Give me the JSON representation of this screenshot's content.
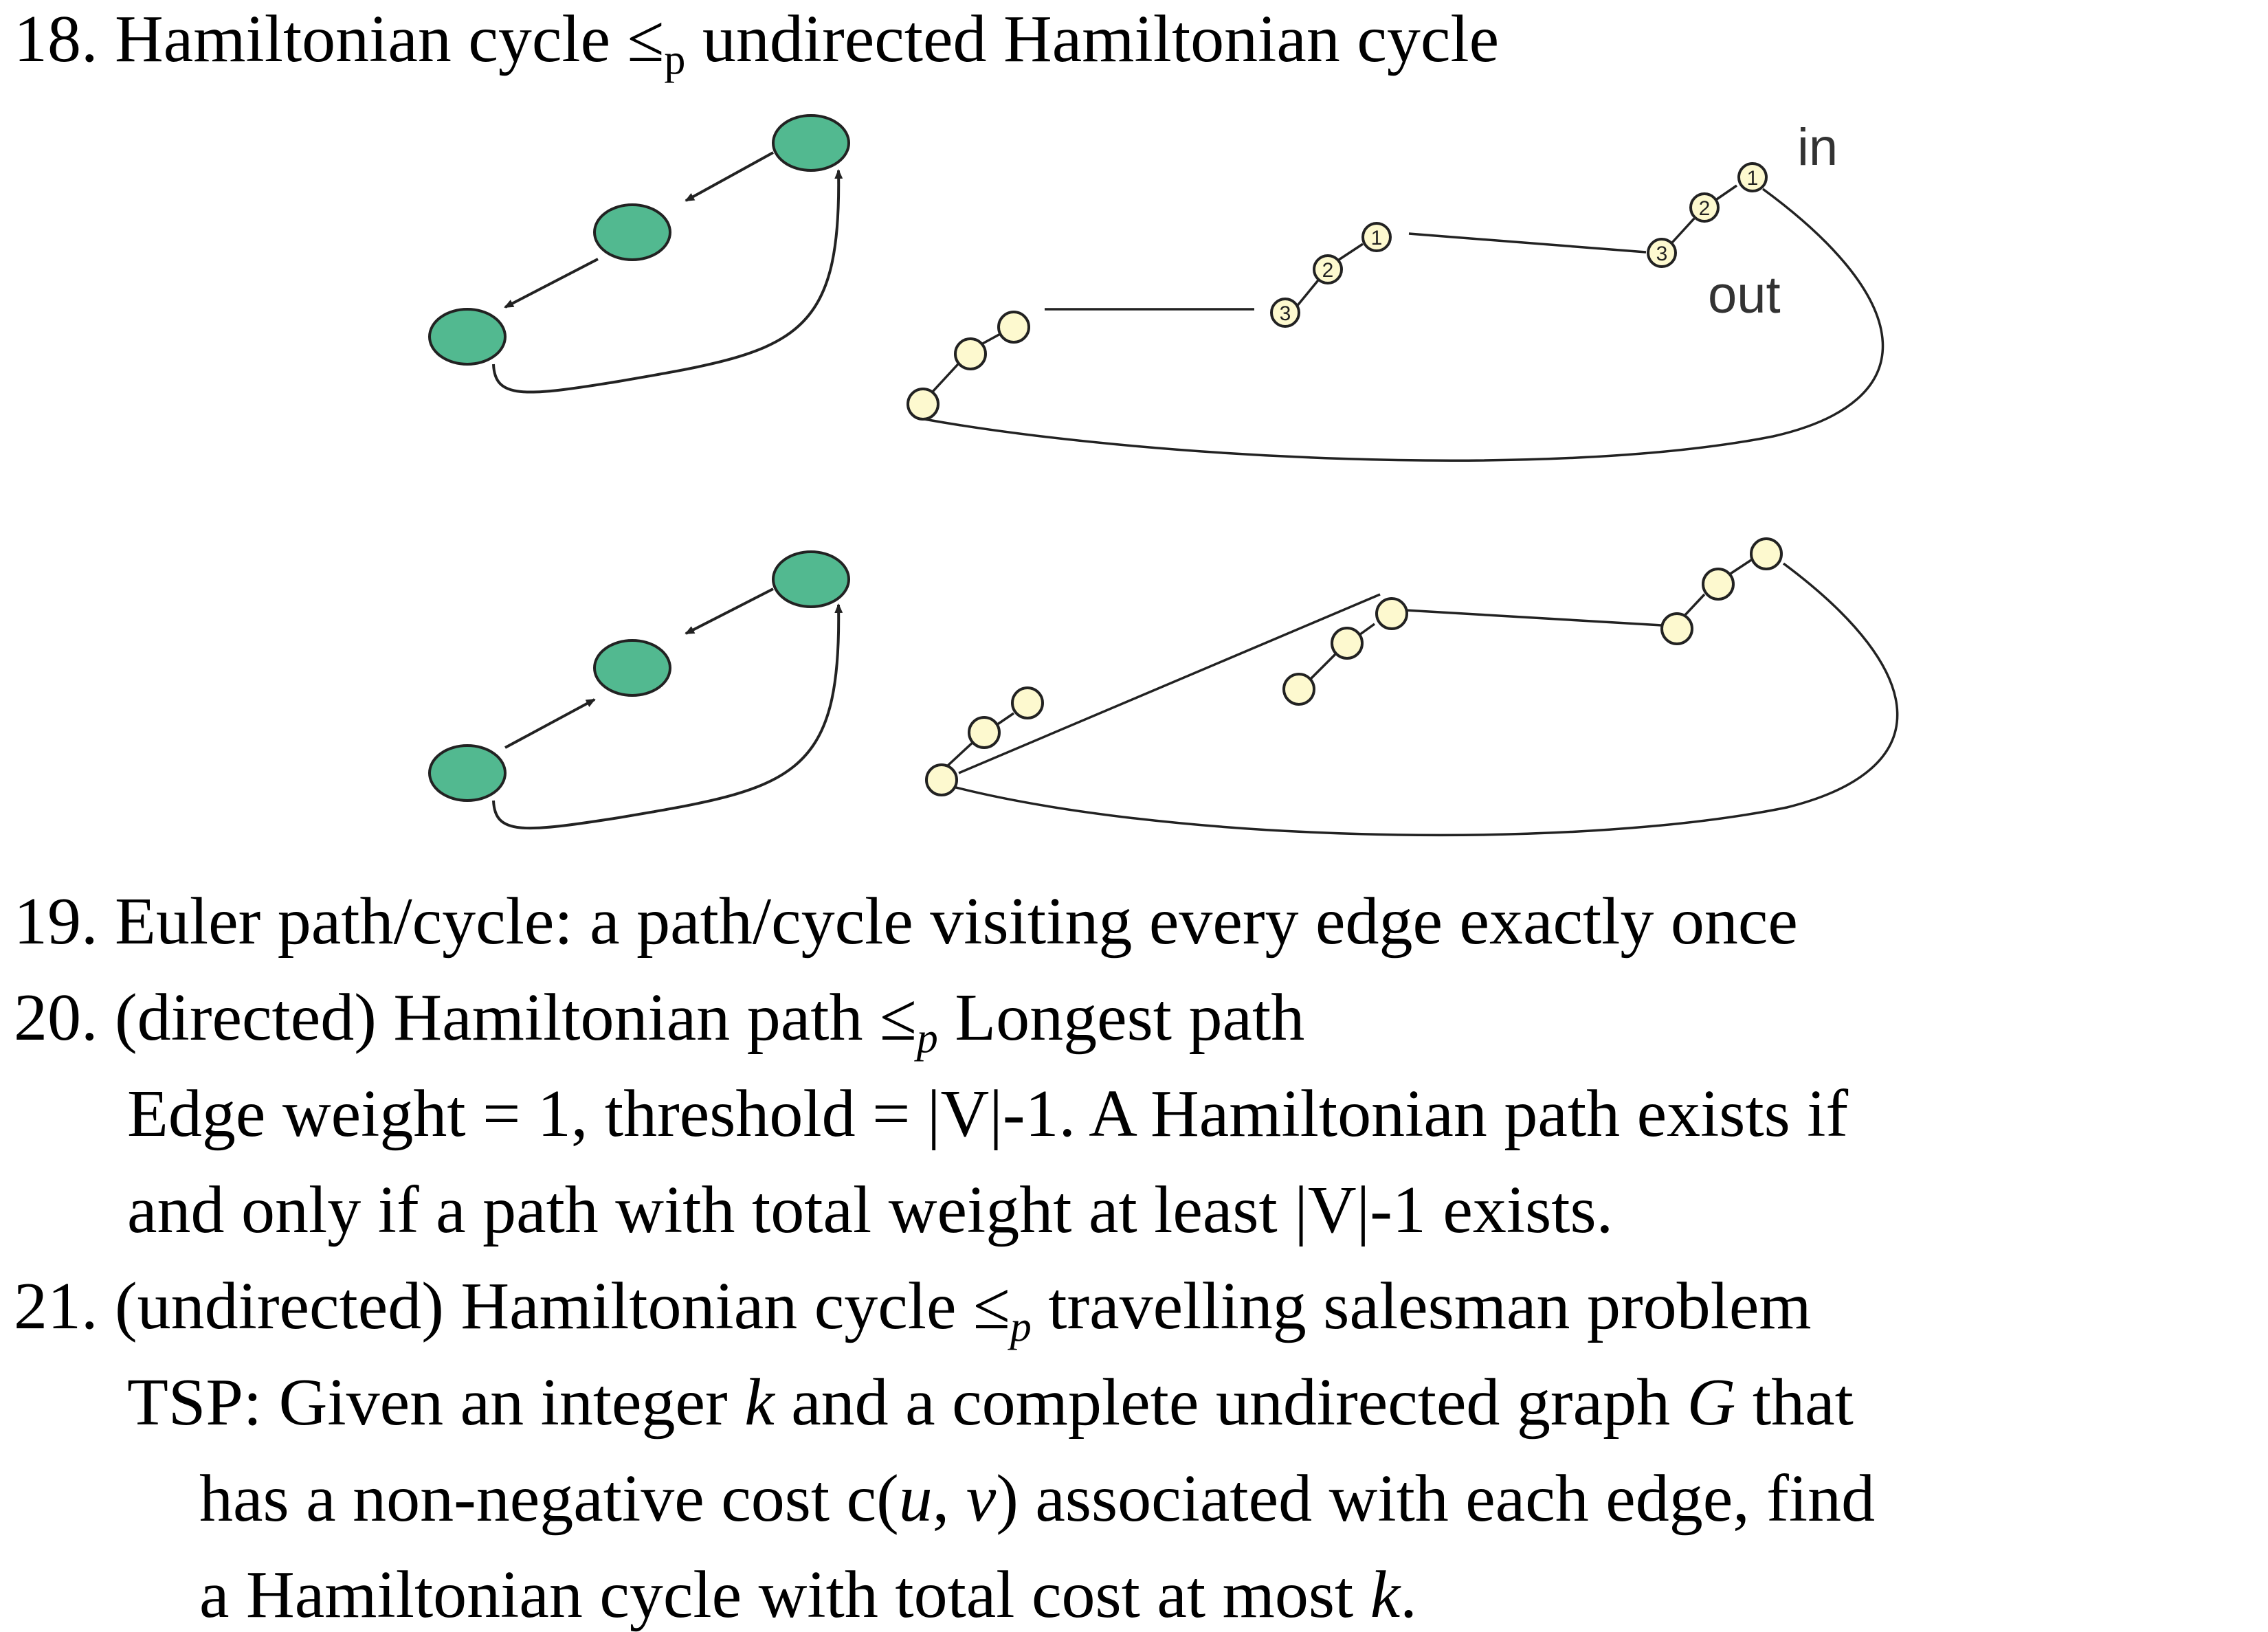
{
  "items": [
    {
      "num": "18.",
      "pre": "Hamiltonian cycle ≤",
      "sub": "p",
      "post": " undirected Hamiltonian cycle"
    },
    {
      "num": "19.",
      "text": "Euler path/cycle: a path/cycle visiting every edge exactly once"
    },
    {
      "num": "20.",
      "pre": "(directed) Hamiltonian path ≤",
      "sub": "p",
      "post": " Longest path",
      "lines": [
        "Edge weight = 1, threshold = |V|-1. A Hamiltonian path exists if",
        "and only if a path with total weight at least |V|-1 exists."
      ]
    },
    {
      "num": "21.",
      "pre": "(undirected) Hamiltonian cycle ≤",
      "sub": "p",
      "post": " travelling salesman problem",
      "tsp": {
        "l1a": "TSP: Given an integer ",
        "k": "k",
        "l1b": " and a complete undirected graph ",
        "G": "G",
        "l1c": " that",
        "l2a": "has a non-negative cost c(",
        "u": "u",
        "l2b": ", ",
        "v": "v",
        "l2c": ") associated with each edge, find",
        "l3a": "a Hamiltonian cycle with total cost at most ",
        "k2": "k",
        "l3b": "."
      }
    }
  ],
  "diagram": {
    "label_in": "in",
    "label_out": "out",
    "node_labels": [
      "3",
      "2",
      "1"
    ],
    "colors": {
      "green_node": "#52b990",
      "yellow_node": "#fdf9cf",
      "stroke": "#222222"
    }
  }
}
